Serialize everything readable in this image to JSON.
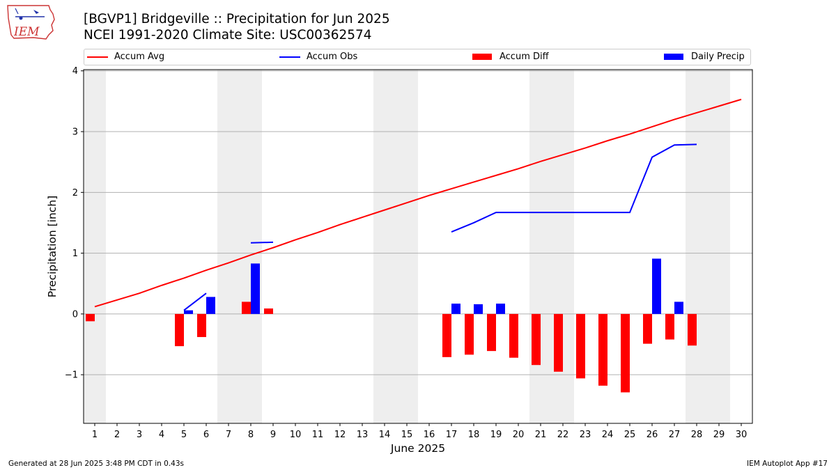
{
  "header": {
    "title_line1": "[BGVP1] Bridgeville :: Precipitation for Jun 2025",
    "title_line2": "NCEI 1991-2020 Climate Site: USC00362574",
    "logo_text": "IEM"
  },
  "legend": {
    "items": [
      {
        "label": "Accum Avg",
        "kind": "line",
        "color": "#ff0000"
      },
      {
        "label": "Accum Obs",
        "kind": "line",
        "color": "#0000ff"
      },
      {
        "label": "Accum Diff",
        "kind": "box",
        "color": "#ff0000"
      },
      {
        "label": "Daily Precip",
        "kind": "box",
        "color": "#0000ff"
      }
    ]
  },
  "footer": {
    "left": "Generated at 28 Jun 2025 3:48 PM CDT in 0.43s",
    "right": "IEM Autoplot App #17"
  },
  "chart_data": {
    "type": "bar",
    "xlabel": "June 2025",
    "ylabel": "Precipitation [inch]",
    "x": [
      1,
      2,
      3,
      4,
      5,
      6,
      7,
      8,
      9,
      10,
      11,
      12,
      13,
      14,
      15,
      16,
      17,
      18,
      19,
      20,
      21,
      22,
      23,
      24,
      25,
      26,
      27,
      28,
      29,
      30
    ],
    "xlim": [
      0.5,
      30.5
    ],
    "ylim": [
      -1.8,
      4.02
    ],
    "yticks": [
      -1,
      0,
      1,
      2,
      3,
      4
    ],
    "ytick_labels": [
      "−1",
      "0",
      "1",
      "2",
      "3",
      "4"
    ],
    "grid": "horizontal",
    "weekend_bands": [
      [
        0.5,
        1.5
      ],
      [
        6.5,
        8.5
      ],
      [
        13.5,
        15.5
      ],
      [
        20.5,
        22.5
      ],
      [
        27.5,
        29.5
      ]
    ],
    "band_color": "#eeeeee",
    "series": [
      {
        "name": "Accum Avg",
        "kind": "line",
        "color": "#ff0000",
        "x": [
          1,
          2,
          3,
          4,
          5,
          6,
          7,
          8,
          9,
          10,
          11,
          12,
          13,
          14,
          15,
          16,
          17,
          18,
          19,
          20,
          21,
          22,
          23,
          24,
          25,
          26,
          27,
          28,
          29,
          30
        ],
        "values": [
          0.12,
          0.23,
          0.34,
          0.47,
          0.59,
          0.72,
          0.84,
          0.97,
          1.09,
          1.22,
          1.34,
          1.47,
          1.59,
          1.71,
          1.83,
          1.95,
          2.06,
          2.17,
          2.28,
          2.39,
          2.51,
          2.62,
          2.73,
          2.85,
          2.96,
          3.08,
          3.2,
          3.31,
          3.42,
          3.53
        ]
      },
      {
        "name": "Accum Obs",
        "kind": "line",
        "color": "#0000ff",
        "segments": [
          {
            "x": [
              5,
              6
            ],
            "values": [
              0.06,
              0.34
            ]
          },
          {
            "x": [
              8,
              9
            ],
            "values": [
              1.17,
              1.18
            ]
          },
          {
            "x": [
              17,
              18,
              19,
              20,
              21,
              22,
              23,
              24,
              25,
              26,
              27,
              28
            ],
            "values": [
              1.35,
              1.5,
              1.67,
              1.67,
              1.67,
              1.67,
              1.67,
              1.67,
              1.67,
              2.58,
              2.78,
              2.79
            ]
          }
        ]
      },
      {
        "name": "Accum Diff",
        "kind": "bar",
        "color": "#ff0000",
        "x": [
          1,
          5,
          6,
          8,
          9,
          17,
          18,
          19,
          20,
          21,
          22,
          23,
          24,
          25,
          26,
          27,
          28
        ],
        "values": [
          -0.12,
          -0.53,
          -0.38,
          0.2,
          0.09,
          -0.71,
          -0.67,
          -0.61,
          -0.72,
          -0.84,
          -0.95,
          -1.06,
          -1.18,
          -1.29,
          -0.49,
          -0.42,
          -0.52
        ]
      },
      {
        "name": "Daily Precip",
        "kind": "bar",
        "color": "#0000ff",
        "x": [
          5,
          6,
          8,
          17,
          18,
          19,
          26,
          27
        ],
        "values": [
          0.06,
          0.28,
          0.83,
          0.17,
          0.16,
          0.17,
          0.91,
          0.2
        ]
      }
    ]
  }
}
